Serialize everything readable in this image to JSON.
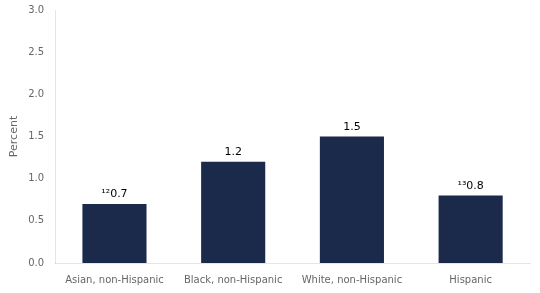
{
  "chart_data": {
    "type": "bar",
    "categories": [
      "Asian, non-Hispanic",
      "Black, non-Hispanic",
      "White, non-Hispanic",
      "Hispanic"
    ],
    "values": [
      0.7,
      1.2,
      1.5,
      0.8
    ],
    "value_labels": [
      "¹²0.7",
      "1.2",
      "1.5",
      "¹³0.8"
    ],
    "data_labels": true,
    "color": "#1b2a4a",
    "ylabel": "Percent",
    "ylim": [
      0,
      3.0
    ],
    "yticks": [
      {
        "value": 0,
        "label": "0.0"
      },
      0.5,
      {
        "value": 1,
        "label": "1.0"
      },
      1.5,
      {
        "value": 2,
        "label": "2.0"
      },
      2.5,
      {
        "value": 3,
        "label": "3.0"
      }
    ],
    "grid": false
  }
}
